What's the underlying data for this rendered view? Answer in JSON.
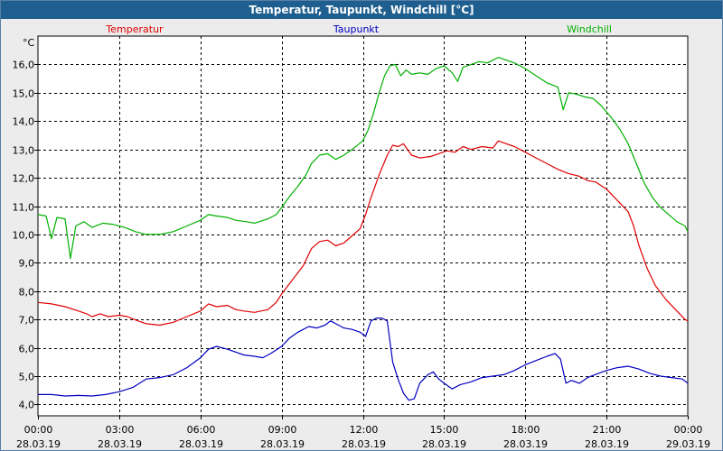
{
  "title": "Temperatur, Taupunkt, Windchill [°C]",
  "chart_data": {
    "type": "line",
    "title": "Temperatur, Taupunkt, Windchill [°C]",
    "ylabel": "°C",
    "ylim": [
      3.6,
      17.0
    ],
    "xlim": [
      0,
      24
    ],
    "y_ticks": [
      "4,0",
      "5,0",
      "6,0",
      "7,0",
      "8,0",
      "9,0",
      "10,0",
      "11,0",
      "12,0",
      "13,0",
      "14,0",
      "15,0",
      "16,0"
    ],
    "x_ticks": [
      {
        "time": "00:00",
        "date": "28.03.19"
      },
      {
        "time": "03:00",
        "date": "28.03.19"
      },
      {
        "time": "06:00",
        "date": "28.03.19"
      },
      {
        "time": "09:00",
        "date": "28.03.19"
      },
      {
        "time": "12:00",
        "date": "28.03.19"
      },
      {
        "time": "15:00",
        "date": "28.03.19"
      },
      {
        "time": "18:00",
        "date": "28.03.19"
      },
      {
        "time": "21:00",
        "date": "28.03.19"
      },
      {
        "time": "00:00",
        "date": "29.03.19"
      }
    ],
    "grid": true,
    "legend_position": "top",
    "series": [
      {
        "name": "Temperatur",
        "color": "#e00000",
        "points": [
          [
            0,
            7.6
          ],
          [
            0.5,
            7.55
          ],
          [
            1,
            7.45
          ],
          [
            1.5,
            7.3
          ],
          [
            1.8,
            7.2
          ],
          [
            2,
            7.1
          ],
          [
            2.3,
            7.2
          ],
          [
            2.6,
            7.1
          ],
          [
            3,
            7.15
          ],
          [
            3.3,
            7.1
          ],
          [
            3.7,
            6.95
          ],
          [
            4,
            6.85
          ],
          [
            4.5,
            6.8
          ],
          [
            5,
            6.9
          ],
          [
            5.5,
            7.1
          ],
          [
            6,
            7.3
          ],
          [
            6.3,
            7.55
          ],
          [
            6.6,
            7.45
          ],
          [
            7,
            7.5
          ],
          [
            7.3,
            7.35
          ],
          [
            7.6,
            7.3
          ],
          [
            8,
            7.25
          ],
          [
            8.5,
            7.35
          ],
          [
            8.8,
            7.6
          ],
          [
            9,
            7.9
          ],
          [
            9.4,
            8.4
          ],
          [
            9.8,
            8.9
          ],
          [
            10.1,
            9.5
          ],
          [
            10.4,
            9.75
          ],
          [
            10.7,
            9.8
          ],
          [
            11,
            9.6
          ],
          [
            11.3,
            9.7
          ],
          [
            11.6,
            9.95
          ],
          [
            11.9,
            10.2
          ],
          [
            12.1,
            10.7
          ],
          [
            12.3,
            11.3
          ],
          [
            12.6,
            12.1
          ],
          [
            12.9,
            12.8
          ],
          [
            13.1,
            13.15
          ],
          [
            13.3,
            13.1
          ],
          [
            13.5,
            13.2
          ],
          [
            13.8,
            12.8
          ],
          [
            14.1,
            12.7
          ],
          [
            14.5,
            12.75
          ],
          [
            14.8,
            12.85
          ],
          [
            15.1,
            12.95
          ],
          [
            15.4,
            12.9
          ],
          [
            15.7,
            13.1
          ],
          [
            16,
            13.0
          ],
          [
            16.4,
            13.1
          ],
          [
            16.8,
            13.05
          ],
          [
            17,
            13.3
          ],
          [
            17.3,
            13.2
          ],
          [
            17.6,
            13.1
          ],
          [
            18,
            12.9
          ],
          [
            18.4,
            12.7
          ],
          [
            18.8,
            12.5
          ],
          [
            19.2,
            12.3
          ],
          [
            19.6,
            12.15
          ],
          [
            20,
            12.05
          ],
          [
            20.3,
            11.9
          ],
          [
            20.6,
            11.85
          ],
          [
            21,
            11.6
          ],
          [
            21.4,
            11.2
          ],
          [
            21.8,
            10.8
          ],
          [
            22.0,
            10.3
          ],
          [
            22.2,
            9.6
          ],
          [
            22.5,
            8.8
          ],
          [
            22.8,
            8.2
          ],
          [
            23.2,
            7.7
          ],
          [
            23.6,
            7.3
          ],
          [
            23.9,
            7.0
          ],
          [
            24,
            6.95
          ]
        ]
      },
      {
        "name": "Taupunkt",
        "color": "#0000c0",
        "points": [
          [
            0,
            4.35
          ],
          [
            0.5,
            4.35
          ],
          [
            1,
            4.3
          ],
          [
            1.5,
            4.32
          ],
          [
            2,
            4.3
          ],
          [
            2.5,
            4.35
          ],
          [
            3,
            4.45
          ],
          [
            3.5,
            4.6
          ],
          [
            4,
            4.9
          ],
          [
            4.5,
            4.95
          ],
          [
            5,
            5.05
          ],
          [
            5.5,
            5.3
          ],
          [
            6,
            5.65
          ],
          [
            6.3,
            5.95
          ],
          [
            6.6,
            6.05
          ],
          [
            7,
            5.95
          ],
          [
            7.3,
            5.85
          ],
          [
            7.6,
            5.75
          ],
          [
            8,
            5.7
          ],
          [
            8.3,
            5.65
          ],
          [
            8.6,
            5.8
          ],
          [
            9,
            6.05
          ],
          [
            9.3,
            6.35
          ],
          [
            9.6,
            6.55
          ],
          [
            10,
            6.75
          ],
          [
            10.3,
            6.7
          ],
          [
            10.6,
            6.8
          ],
          [
            10.8,
            6.95
          ],
          [
            11,
            6.85
          ],
          [
            11.3,
            6.7
          ],
          [
            11.6,
            6.65
          ],
          [
            11.9,
            6.55
          ],
          [
            12.1,
            6.4
          ],
          [
            12.3,
            6.95
          ],
          [
            12.5,
            7.05
          ],
          [
            12.7,
            7.05
          ],
          [
            12.9,
            6.95
          ],
          [
            13.1,
            5.5
          ],
          [
            13.3,
            4.9
          ],
          [
            13.5,
            4.4
          ],
          [
            13.7,
            4.15
          ],
          [
            13.9,
            4.2
          ],
          [
            14.1,
            4.75
          ],
          [
            14.4,
            5.05
          ],
          [
            14.6,
            5.15
          ],
          [
            14.8,
            4.9
          ],
          [
            15,
            4.75
          ],
          [
            15.3,
            4.55
          ],
          [
            15.6,
            4.7
          ],
          [
            16,
            4.8
          ],
          [
            16.4,
            4.95
          ],
          [
            16.8,
            5.0
          ],
          [
            17.2,
            5.05
          ],
          [
            17.6,
            5.2
          ],
          [
            18,
            5.4
          ],
          [
            18.4,
            5.55
          ],
          [
            18.8,
            5.7
          ],
          [
            19.1,
            5.8
          ],
          [
            19.3,
            5.6
          ],
          [
            19.5,
            4.75
          ],
          [
            19.7,
            4.85
          ],
          [
            20,
            4.75
          ],
          [
            20.3,
            4.95
          ],
          [
            20.7,
            5.1
          ],
          [
            21,
            5.2
          ],
          [
            21.4,
            5.3
          ],
          [
            21.8,
            5.35
          ],
          [
            22.2,
            5.25
          ],
          [
            22.6,
            5.1
          ],
          [
            23,
            5.0
          ],
          [
            23.4,
            4.95
          ],
          [
            23.8,
            4.9
          ],
          [
            24,
            4.75
          ]
        ]
      },
      {
        "name": "Windchill",
        "color": "#00b000",
        "points": [
          [
            0,
            10.7
          ],
          [
            0.3,
            10.65
          ],
          [
            0.5,
            9.85
          ],
          [
            0.7,
            10.6
          ],
          [
            1,
            10.55
          ],
          [
            1.2,
            9.15
          ],
          [
            1.4,
            10.3
          ],
          [
            1.7,
            10.45
          ],
          [
            2,
            10.25
          ],
          [
            2.4,
            10.4
          ],
          [
            2.8,
            10.35
          ],
          [
            3.2,
            10.25
          ],
          [
            3.6,
            10.1
          ],
          [
            4,
            10.0
          ],
          [
            4.5,
            10.0
          ],
          [
            5,
            10.1
          ],
          [
            5.5,
            10.3
          ],
          [
            6,
            10.5
          ],
          [
            6.3,
            10.7
          ],
          [
            6.6,
            10.65
          ],
          [
            7,
            10.6
          ],
          [
            7.3,
            10.5
          ],
          [
            7.7,
            10.45
          ],
          [
            8,
            10.4
          ],
          [
            8.5,
            10.55
          ],
          [
            8.8,
            10.7
          ],
          [
            9,
            10.95
          ],
          [
            9.3,
            11.35
          ],
          [
            9.6,
            11.7
          ],
          [
            9.9,
            12.1
          ],
          [
            10.1,
            12.5
          ],
          [
            10.4,
            12.8
          ],
          [
            10.7,
            12.85
          ],
          [
            11,
            12.65
          ],
          [
            11.3,
            12.8
          ],
          [
            11.6,
            13.0
          ],
          [
            12,
            13.3
          ],
          [
            12.2,
            13.7
          ],
          [
            12.4,
            14.3
          ],
          [
            12.6,
            15.0
          ],
          [
            12.8,
            15.6
          ],
          [
            13,
            15.95
          ],
          [
            13.2,
            16.0
          ],
          [
            13.4,
            15.6
          ],
          [
            13.6,
            15.8
          ],
          [
            13.8,
            15.65
          ],
          [
            14.1,
            15.7
          ],
          [
            14.4,
            15.65
          ],
          [
            14.7,
            15.85
          ],
          [
            15,
            15.95
          ],
          [
            15.3,
            15.7
          ],
          [
            15.5,
            15.4
          ],
          [
            15.7,
            15.9
          ],
          [
            16,
            16.0
          ],
          [
            16.3,
            16.1
          ],
          [
            16.6,
            16.05
          ],
          [
            17,
            16.25
          ],
          [
            17.3,
            16.15
          ],
          [
            17.6,
            16.05
          ],
          [
            18,
            15.85
          ],
          [
            18.4,
            15.6
          ],
          [
            18.8,
            15.35
          ],
          [
            19.2,
            15.2
          ],
          [
            19.4,
            14.4
          ],
          [
            19.6,
            15.0
          ],
          [
            19.9,
            14.95
          ],
          [
            20.2,
            14.85
          ],
          [
            20.5,
            14.8
          ],
          [
            20.8,
            14.55
          ],
          [
            21.2,
            14.1
          ],
          [
            21.5,
            13.7
          ],
          [
            21.8,
            13.2
          ],
          [
            22.1,
            12.5
          ],
          [
            22.4,
            11.8
          ],
          [
            22.7,
            11.3
          ],
          [
            23,
            10.95
          ],
          [
            23.3,
            10.7
          ],
          [
            23.6,
            10.45
          ],
          [
            23.9,
            10.3
          ],
          [
            24,
            10.1
          ]
        ]
      }
    ]
  }
}
